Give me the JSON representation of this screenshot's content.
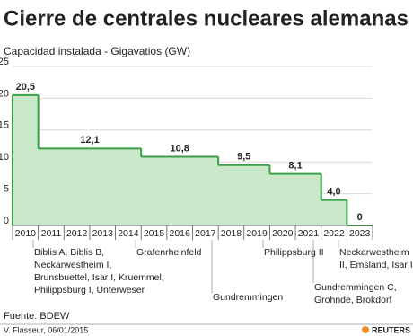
{
  "chart_data": {
    "type": "step-bar",
    "title": "Cierre de centrales nucleares alemanas",
    "subtitle": "Capacidad instalada - Gigavatios (GW)",
    "categories": [
      "2010",
      "2011",
      "2012",
      "2013",
      "2014",
      "2015",
      "2016",
      "2017",
      "2018",
      "2019",
      "2020",
      "2021",
      "2022",
      "2023"
    ],
    "x": [
      "2010",
      "2011",
      "2015",
      "2018",
      "2020",
      "2022",
      "2023"
    ],
    "values": [
      20.5,
      12.1,
      10.8,
      9.5,
      8.1,
      4.0,
      0
    ],
    "value_labels": [
      "20,5",
      "12,1",
      "10,8",
      "9,5",
      "8,1",
      "4,0",
      "0"
    ],
    "color": "#c9e8c9",
    "edge_color": "#3aa047",
    "ylim": [
      0,
      25
    ],
    "yticks": [
      0,
      5,
      10,
      15,
      20,
      25
    ],
    "grid": true,
    "annotations": [
      [
        "Biblis A, Biblis B,",
        "Neckarwestheim I,",
        "Brunsbuettel, Isar I, Kruemmel,",
        "Philippsburg I, Unterweser"
      ],
      [
        "Grafenrheinfeld"
      ],
      [
        "Gundremmingen"
      ],
      [
        "Philippsburg II"
      ],
      [
        "Gundremmingen C,",
        "Grohnde, Brokdorf"
      ],
      [
        "Neckarwestheim",
        "II, Emsland, Isar II"
      ]
    ],
    "source": "Fuente: BDEW",
    "credit": "V. Flasseur, 06/01/2015",
    "logo": "REUTERS"
  }
}
